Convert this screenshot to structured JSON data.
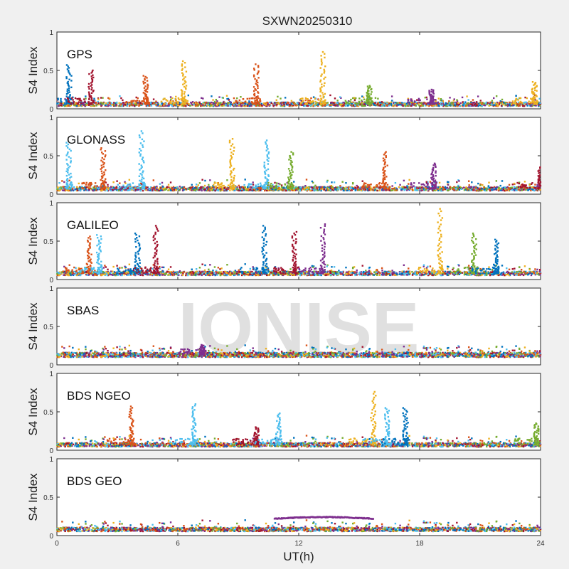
{
  "chart_data": {
    "type": "scatter",
    "title": "SXWN20250310",
    "xlabel": "UT(h)",
    "ylabel": "S4 Index",
    "watermark": "IONISE",
    "xlim": [
      0,
      24
    ],
    "xticks": [
      "0",
      "6",
      "12",
      "18",
      "24"
    ],
    "ylim": [
      0,
      1
    ],
    "yticks": [
      "0",
      "0.5",
      "1"
    ],
    "grid": false,
    "colors": [
      "#0072BD",
      "#D95319",
      "#EDB120",
      "#7E2F8E",
      "#77AC30",
      "#4DBEEE",
      "#A2142F"
    ],
    "panels": [
      {
        "label": "GPS",
        "baseline": 0.06,
        "spikes": [
          {
            "x": 0.6,
            "y": 0.57,
            "series": 0
          },
          {
            "x": 1.7,
            "y": 0.5,
            "series": 6
          },
          {
            "x": 4.4,
            "y": 0.43,
            "series": 1
          },
          {
            "x": 6.3,
            "y": 0.62,
            "series": 2
          },
          {
            "x": 9.9,
            "y": 0.58,
            "series": 1
          },
          {
            "x": 13.2,
            "y": 0.74,
            "series": 2
          },
          {
            "x": 15.5,
            "y": 0.3,
            "series": 4
          },
          {
            "x": 18.6,
            "y": 0.25,
            "series": 3
          },
          {
            "x": 23.7,
            "y": 0.35,
            "series": 2
          }
        ]
      },
      {
        "label": "GLONASS",
        "baseline": 0.07,
        "spikes": [
          {
            "x": 0.6,
            "y": 0.67,
            "series": 5
          },
          {
            "x": 2.3,
            "y": 0.6,
            "series": 1
          },
          {
            "x": 4.2,
            "y": 0.82,
            "series": 5
          },
          {
            "x": 8.7,
            "y": 0.72,
            "series": 2
          },
          {
            "x": 10.4,
            "y": 0.7,
            "series": 5
          },
          {
            "x": 11.6,
            "y": 0.55,
            "series": 4
          },
          {
            "x": 16.3,
            "y": 0.55,
            "series": 1
          },
          {
            "x": 18.7,
            "y": 0.4,
            "series": 3
          },
          {
            "x": 24.0,
            "y": 0.35,
            "series": 6
          }
        ]
      },
      {
        "label": "GALILEO",
        "baseline": 0.08,
        "spikes": [
          {
            "x": 1.6,
            "y": 0.56,
            "series": 1
          },
          {
            "x": 2.1,
            "y": 0.58,
            "series": 5
          },
          {
            "x": 4.0,
            "y": 0.6,
            "series": 0
          },
          {
            "x": 4.9,
            "y": 0.7,
            "series": 6
          },
          {
            "x": 10.3,
            "y": 0.7,
            "series": 0
          },
          {
            "x": 11.8,
            "y": 0.62,
            "series": 6
          },
          {
            "x": 13.2,
            "y": 0.72,
            "series": 3
          },
          {
            "x": 19.0,
            "y": 0.92,
            "series": 2
          },
          {
            "x": 20.7,
            "y": 0.6,
            "series": 4
          },
          {
            "x": 21.8,
            "y": 0.52,
            "series": 0
          }
        ]
      },
      {
        "label": "SBAS",
        "baseline": 0.13,
        "spikes": [
          {
            "x": 7.2,
            "y": 0.26,
            "series": 3
          }
        ]
      },
      {
        "label": "BDS NGEO",
        "baseline": 0.07,
        "spikes": [
          {
            "x": 3.7,
            "y": 0.57,
            "series": 1
          },
          {
            "x": 6.8,
            "y": 0.6,
            "series": 5
          },
          {
            "x": 9.9,
            "y": 0.3,
            "series": 6
          },
          {
            "x": 11.0,
            "y": 0.48,
            "series": 5
          },
          {
            "x": 15.7,
            "y": 0.76,
            "series": 2
          },
          {
            "x": 16.4,
            "y": 0.55,
            "series": 5
          },
          {
            "x": 17.3,
            "y": 0.55,
            "series": 0
          },
          {
            "x": 23.8,
            "y": 0.35,
            "series": 4
          }
        ]
      },
      {
        "label": "BDS GEO",
        "baseline": 0.08,
        "arc": {
          "x0": 10.8,
          "x1": 15.7,
          "y": 0.22,
          "series": 3
        },
        "spikes": []
      }
    ]
  }
}
